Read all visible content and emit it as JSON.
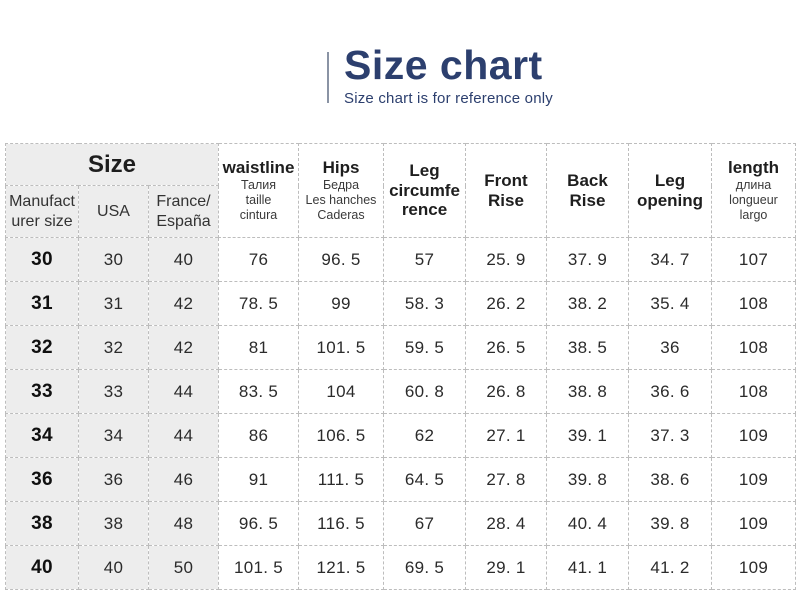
{
  "colors": {
    "title": "#2c3f6e",
    "accent_bar": "#8a93a4",
    "border": "#bdbdbd",
    "shaded_bg": "#ededed",
    "text": "#2b2b2b"
  },
  "header": {
    "title": "Size chart",
    "subtitle": "Size chart is for reference only"
  },
  "table": {
    "group_header": "Size",
    "columns": [
      {
        "key": "manufacturer-size",
        "label": "Manufacturer size"
      },
      {
        "key": "usa",
        "label": "USA"
      },
      {
        "key": "france-espana",
        "label": "France/España"
      },
      {
        "key": "waistline",
        "label": "waistline",
        "sub": "Талия\ntaille\ncintura"
      },
      {
        "key": "hips",
        "label": "Hips",
        "sub": "Бедра\nLes hanches\nCaderas"
      },
      {
        "key": "leg-circumference",
        "label": "Leg circumference",
        "sub": ""
      },
      {
        "key": "front-rise",
        "label": "Front Rise",
        "sub": ""
      },
      {
        "key": "back-rise",
        "label": "Back Rise",
        "sub": ""
      },
      {
        "key": "leg-opening",
        "label": "Leg opening",
        "sub": ""
      },
      {
        "key": "length",
        "label": "length",
        "sub": "длина\nlongueur\nlargo"
      }
    ]
  },
  "chart_data": {
    "type": "table",
    "title": "Size chart",
    "subtitle": "Size chart is for reference only",
    "columns": [
      "Manufacturer size",
      "USA",
      "France/España",
      "waistline",
      "Hips",
      "Leg circumference",
      "Front Rise",
      "Back Rise",
      "Leg opening",
      "length"
    ],
    "rows": [
      [
        30,
        30,
        40,
        76,
        96.5,
        57,
        25.9,
        37.9,
        34.7,
        107
      ],
      [
        31,
        31,
        42,
        78.5,
        99,
        58.3,
        26.2,
        38.2,
        35.4,
        108
      ],
      [
        32,
        32,
        42,
        81,
        101.5,
        59.5,
        26.5,
        38.5,
        36,
        108
      ],
      [
        33,
        33,
        44,
        83.5,
        104,
        60.8,
        26.8,
        38.8,
        36.6,
        108
      ],
      [
        34,
        34,
        44,
        86,
        106.5,
        62,
        27.1,
        39.1,
        37.3,
        109
      ],
      [
        36,
        36,
        46,
        91,
        111.5,
        64.5,
        27.8,
        39.8,
        38.6,
        109
      ],
      [
        38,
        38,
        48,
        96.5,
        116.5,
        67,
        28.4,
        40.4,
        39.8,
        109
      ],
      [
        40,
        40,
        50,
        101.5,
        121.5,
        69.5,
        29.1,
        41.1,
        41.2,
        109
      ]
    ]
  }
}
